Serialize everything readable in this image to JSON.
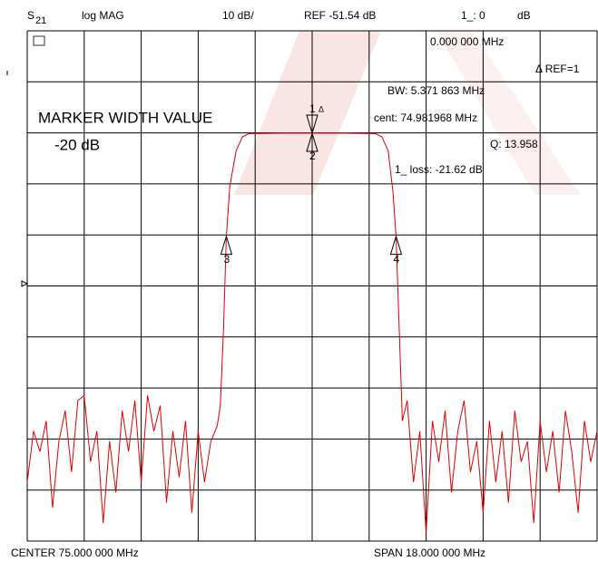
{
  "chart_data": {
    "type": "line",
    "header": {
      "s_param": "S",
      "s_param_sub": "21",
      "format": "log MAG",
      "scale": "10 dB/",
      "reference": "REF -51.54 dB",
      "marker_readout": "1_: 0",
      "marker_unit": "dB"
    },
    "annotations": {
      "stimulus": "0.000 000 MHz",
      "delta_ref": "Δ REF=1",
      "bandwidth": "BW:  5.371 863 MHz",
      "center_freq": "cent:  74.981968 MHz",
      "q_factor": "Q: 13.958",
      "loss": "1_ loss: -21.62  dB",
      "mode": "MARKER WIDTH VALUE",
      "width_value": "-20 dB"
    },
    "footer": {
      "center": "CENTER  75.000 000 MHz",
      "span": "SPAN  18.000 000 MHz"
    },
    "xlim": [
      66,
      84
    ],
    "ylim": [
      -101.54,
      -1.54
    ],
    "grid": true,
    "series": [
      {
        "name": "S21",
        "color": "#e00000",
        "x": [
          66.0,
          66.2,
          66.4,
          66.6,
          66.8,
          67.0,
          67.2,
          67.4,
          67.6,
          67.8,
          68.0,
          68.2,
          68.4,
          68.6,
          68.8,
          69.0,
          69.2,
          69.4,
          69.6,
          69.8,
          70.0,
          70.2,
          70.4,
          70.6,
          70.8,
          71.0,
          71.2,
          71.4,
          71.6,
          71.8,
          72.0,
          72.1,
          72.2,
          72.29,
          72.4,
          72.6,
          72.8,
          73.0,
          74.0,
          75.0,
          76.0,
          77.0,
          77.2,
          77.4,
          77.55,
          77.65,
          77.75,
          77.85,
          78.0,
          78.2,
          78.4,
          78.6,
          78.8,
          79.0,
          79.2,
          79.4,
          79.6,
          79.8,
          80.0,
          80.2,
          80.4,
          80.6,
          80.8,
          81.0,
          81.2,
          81.4,
          81.6,
          81.8,
          82.0,
          82.2,
          82.4,
          82.6,
          82.8,
          83.0,
          83.2,
          83.4,
          83.6,
          83.8,
          84.0
        ],
        "values": [
          -90,
          -80,
          -84,
          -78,
          -95,
          -82,
          -76,
          -88,
          -74,
          -73,
          -86,
          -80,
          -98,
          -82,
          -92,
          -76,
          -84,
          -74,
          -90,
          -73,
          -80,
          -75,
          -94,
          -80,
          -89,
          -78,
          -96,
          -80,
          -90,
          -82,
          -79,
          -75,
          -60,
          -41.8,
          -32,
          -25,
          -22.3,
          -21.7,
          -21.6,
          -21.62,
          -21.6,
          -21.7,
          -22.3,
          -25,
          -33,
          -41.8,
          -60,
          -78,
          -74,
          -90,
          -80,
          -100,
          -78,
          -86,
          -76,
          -92,
          -80,
          -74,
          -88,
          -82,
          -96,
          -78,
          -90,
          -80,
          -94,
          -76,
          -86,
          -82,
          -98,
          -78,
          -88,
          -80,
          -92,
          -76,
          -84,
          -96,
          -78,
          -86,
          -80
        ]
      }
    ],
    "markers": [
      {
        "label": "1",
        "x": 75.0,
        "y": -21.62
      },
      {
        "label": "2",
        "x": 75.0,
        "y": -21.62
      },
      {
        "label": "3",
        "x": 72.29,
        "y": -41.8
      },
      {
        "label": "4",
        "x": 77.65,
        "y": -41.8
      }
    ],
    "delta_symbol": "Δ"
  }
}
